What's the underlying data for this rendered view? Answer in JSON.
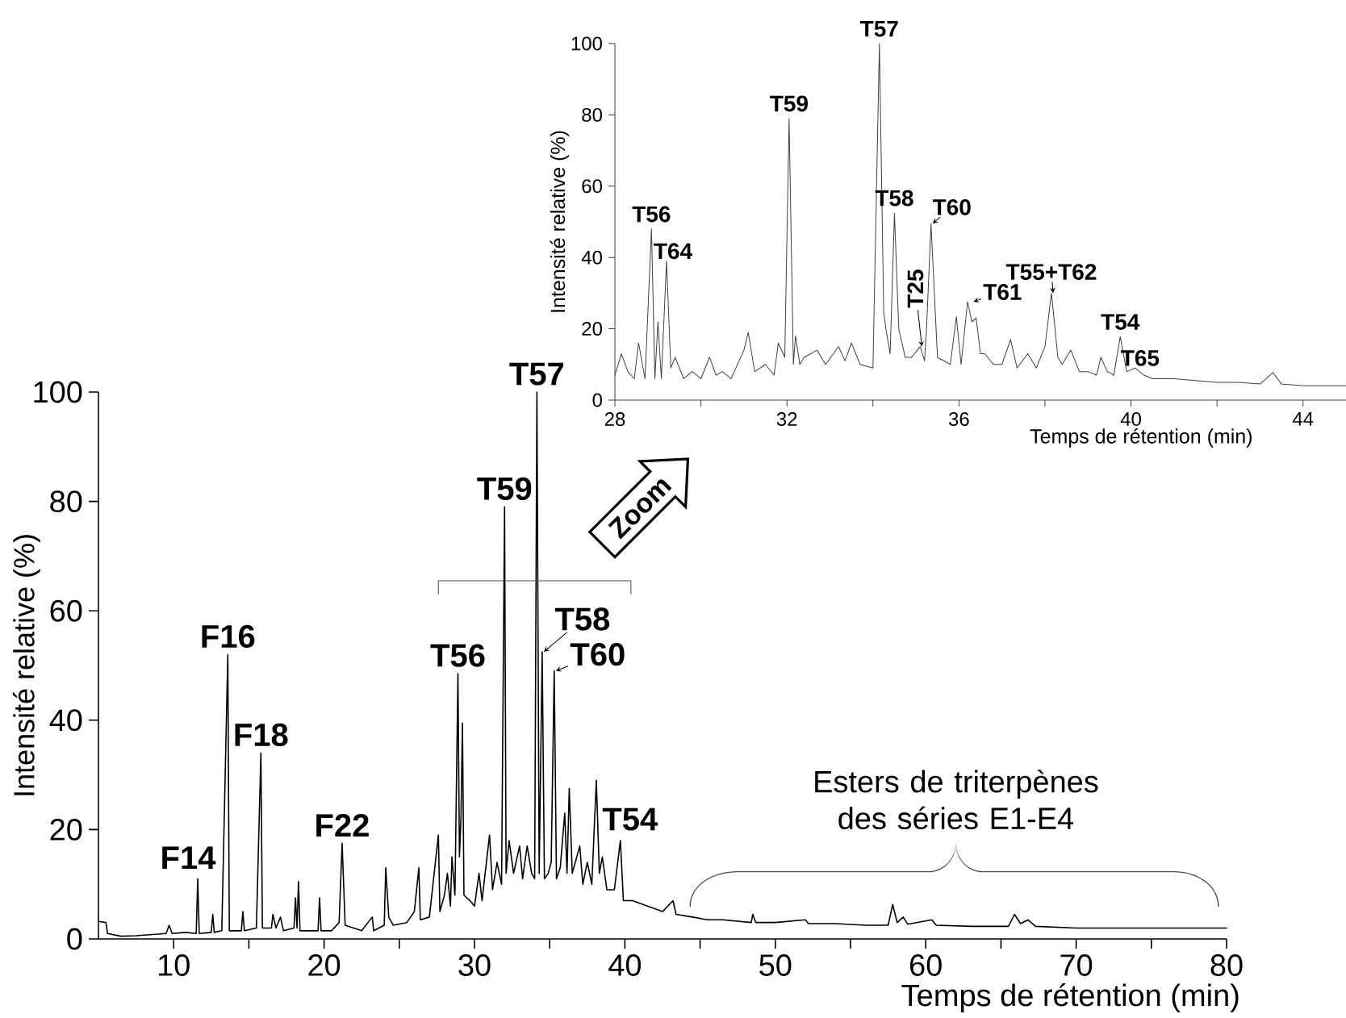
{
  "chart_data": [
    {
      "type": "line",
      "xlabel": "Temps de rétention (min)",
      "ylabel": "Intensité relative (%)",
      "xlim": [
        5,
        80
      ],
      "xticks": [
        10,
        {
          "value": 15,
          "label": null
        },
        20,
        {
          "value": 25,
          "label": null
        },
        30,
        {
          "value": 35,
          "label": null
        },
        40,
        {
          "value": 45,
          "label": null
        },
        50,
        {
          "value": 55,
          "label": null
        },
        60,
        {
          "value": 65,
          "label": null
        },
        70,
        {
          "value": 75,
          "label": null
        },
        80
      ],
      "ylim": [
        0,
        100
      ],
      "yticks": [
        0,
        20,
        40,
        60,
        80,
        100
      ],
      "series": [
        {
          "color": "#000000",
          "x": [
            5,
            5.5,
            5.6,
            6.5,
            7.5,
            8.5,
            9.5,
            9.7,
            9.9,
            10.8,
            11.5,
            11.6,
            11.7,
            12.5,
            12.6,
            12.7,
            13.2,
            13.6,
            13.7,
            14.5,
            14.6,
            14.7,
            15.5,
            15.8,
            15.9,
            16.5,
            16.6,
            16.8,
            17.1,
            17.3,
            18.0,
            18.1,
            18.2,
            18.3,
            18.4,
            19.6,
            19.7,
            19.8,
            20.5,
            21.0,
            21.2,
            21.4,
            22.5,
            23.2,
            23.3,
            24.0,
            24.1,
            24.3,
            24.6,
            25.5,
            26.0,
            26.3,
            26.4,
            27.0,
            27.6,
            27.7,
            28.0,
            28.2,
            28.4,
            28.5,
            28.7,
            28.9,
            29.0,
            29.1,
            29.2,
            29.3,
            29.7,
            30.0,
            30.3,
            30.5,
            31.0,
            31.2,
            31.5,
            31.8,
            32.0,
            32.1,
            32.3,
            32.6,
            33.0,
            33.2,
            33.5,
            33.8,
            34.0,
            34.15,
            34.3,
            34.5,
            34.65,
            34.9,
            35.1,
            35.3,
            35.45,
            35.7,
            36.0,
            36.15,
            36.3,
            36.5,
            37.0,
            37.2,
            37.5,
            37.8,
            38.1,
            38.3,
            38.5,
            38.8,
            39.3,
            39.7,
            39.9,
            40.5,
            41.5,
            42.5,
            43.2,
            43.4,
            44.5,
            45.5,
            46.5,
            48.4,
            48.5,
            48.7,
            50,
            52,
            52.2,
            54,
            56,
            57.5,
            57.8,
            58.1,
            58.5,
            58.8,
            60.4,
            60.7,
            63,
            65.5,
            65.9,
            66.3,
            66.8,
            67.3,
            70,
            75,
            80
          ],
          "values": [
            3.2,
            3.0,
            1.0,
            0.5,
            0.6,
            0.8,
            1.0,
            2.5,
            1.0,
            1.2,
            1.0,
            11,
            1.0,
            1.2,
            4.5,
            1.2,
            1.5,
            52,
            1.5,
            1.5,
            5,
            1.5,
            2,
            34,
            2,
            2,
            4.5,
            2,
            4,
            1.5,
            2,
            7.5,
            2,
            10.5,
            1.5,
            1.5,
            7.5,
            1.5,
            1.5,
            3,
            17.5,
            2.5,
            1.5,
            4,
            1.5,
            2.5,
            13,
            4,
            2.5,
            3,
            5,
            13,
            3.5,
            4,
            19,
            5,
            8,
            12,
            6,
            15,
            8,
            48.5,
            15,
            22,
            39.5,
            8,
            7,
            6,
            12,
            7,
            19,
            9,
            14,
            10,
            79,
            12,
            18,
            12,
            17,
            11,
            17,
            12,
            11,
            100,
            12,
            52.5,
            11,
            12,
            14,
            49,
            11,
            13,
            23,
            12,
            27.5,
            12,
            17,
            10,
            14,
            10,
            29,
            12,
            15,
            9,
            9,
            18,
            7,
            7,
            6,
            5,
            7,
            4.5,
            4,
            3.5,
            3.5,
            3,
            4.5,
            3,
            3,
            3.5,
            2.8,
            2.8,
            2.5,
            2.5,
            6.3,
            3,
            4,
            2.7,
            3.5,
            2.5,
            2.3,
            2.3,
            4.5,
            2.8,
            3.5,
            2.3,
            2,
            2,
            2
          ]
        }
      ],
      "annotations": [
        {
          "text": "**F14**",
          "x": 11.6,
          "y": 11
        },
        {
          "text": "**F16**",
          "x": 13.6,
          "y": 52
        },
        {
          "text": "**F18**",
          "x": 15.8,
          "y": 34
        },
        {
          "text": "**F22**",
          "x": 21.2,
          "y": 17.5
        },
        {
          "text": "**T56**",
          "x": 28.9,
          "y": 48.5
        },
        {
          "text": "**T59**",
          "x": 32.0,
          "y": 79
        },
        {
          "text": "**T57**",
          "x": 34.15,
          "y": 100
        },
        {
          "text": "**T58**",
          "x": 34.5,
          "y": 52.5
        },
        {
          "text": "**T60**",
          "x": 35.3,
          "y": 49
        },
        {
          "text": "**T54**",
          "x": 39.7,
          "y": 18
        },
        "Esters de triterpènes des séries E1-E4",
        "**Zoom**"
      ]
    },
    {
      "type": "line",
      "xlabel": "Temps de rétention (min)",
      "ylabel": "Intensité relative (%)",
      "xlim": [
        28,
        45
      ],
      "xticks": [
        28,
        {
          "value": 30,
          "label": null
        },
        32,
        {
          "value": 34,
          "label": null
        },
        36,
        {
          "value": 38,
          "label": null
        },
        40,
        {
          "value": 42,
          "label": null
        },
        44
      ],
      "ylim": [
        0,
        100
      ],
      "yticks": [
        0,
        20,
        40,
        60,
        80,
        100
      ],
      "series": [
        {
          "color": "#404040",
          "x": [
            28,
            28.15,
            28.3,
            28.45,
            28.55,
            28.7,
            28.85,
            28.93,
            29.0,
            29.08,
            29.2,
            29.3,
            29.4,
            29.6,
            29.8,
            30.0,
            30.2,
            30.35,
            30.5,
            30.7,
            31.0,
            31.1,
            31.25,
            31.5,
            31.7,
            31.8,
            31.95,
            32.05,
            32.15,
            32.2,
            32.3,
            32.4,
            32.7,
            32.9,
            33.2,
            33.35,
            33.5,
            33.7,
            34.0,
            34.15,
            34.25,
            34.3,
            34.4,
            34.5,
            34.6,
            34.75,
            34.9,
            35.1,
            35.2,
            35.25,
            35.35,
            35.5,
            35.8,
            35.94,
            36.05,
            36.2,
            36.3,
            36.4,
            36.5,
            36.6,
            36.8,
            37.0,
            37.2,
            37.35,
            37.6,
            37.8,
            38.0,
            38.15,
            38.3,
            38.4,
            38.6,
            38.8,
            39.0,
            39.2,
            39.3,
            39.45,
            39.6,
            39.75,
            39.9,
            40.1,
            40.3,
            40.5,
            41.0,
            41.5,
            42.0,
            42.5,
            43.0,
            43.3,
            43.5,
            44.0,
            44.5,
            45
          ],
          "values": [
            7,
            13,
            8,
            6,
            16,
            6,
            48,
            6,
            22,
            6,
            39,
            9,
            12,
            6,
            8,
            6,
            12,
            7,
            8,
            6,
            14,
            19,
            8,
            10,
            7,
            16,
            12,
            79,
            10,
            18,
            10,
            12,
            14,
            10,
            15,
            11,
            16,
            10,
            9,
            100,
            25,
            20,
            13,
            52.5,
            20,
            12,
            12,
            15,
            11,
            21,
            49.5,
            12,
            10,
            23.4,
            10,
            27.6,
            22,
            23,
            13,
            13,
            10,
            10,
            17,
            9,
            13,
            9,
            15,
            30,
            12,
            10,
            14,
            8,
            8,
            7,
            12,
            8,
            7,
            17.8,
            8,
            9,
            7,
            6,
            6,
            5.5,
            5,
            5,
            4.5,
            7.7,
            4.5,
            4,
            4,
            4
          ]
        }
      ],
      "annotations": [
        {
          "text": "**T56**",
          "x": 28.85,
          "y": 48
        },
        {
          "text": "**T64**",
          "x": 29.2,
          "y": 39
        },
        {
          "text": "**T59**",
          "x": 32.05,
          "y": 79
        },
        {
          "text": "**T57**",
          "x": 34.15,
          "y": 100
        },
        {
          "text": "**T58**",
          "x": 34.5,
          "y": 52.5
        },
        {
          "text": "**T60**",
          "x": 35.35,
          "y": 49.5
        },
        {
          "text": "**T25**",
          "x": 35.1,
          "y": 15
        },
        {
          "text": "**T61**",
          "x": 36.3,
          "y": 27.6
        },
        {
          "text": "**T55+T62**",
          "x": 38.15,
          "y": 30
        },
        {
          "text": "**T54**",
          "x": 39.75,
          "y": 17.8
        },
        {
          "text": "**T65**",
          "x": 40.1,
          "y": 9
        }
      ]
    }
  ]
}
